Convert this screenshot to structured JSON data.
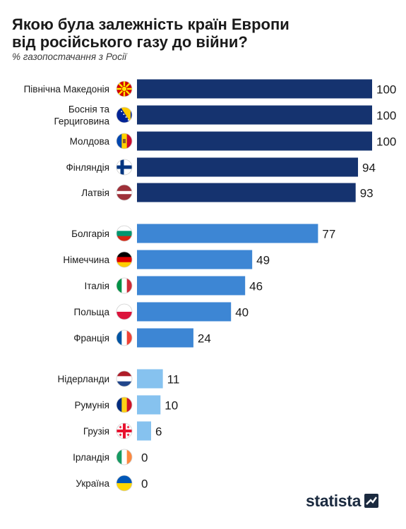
{
  "header": {
    "title": "Якою була залежність країн Европи\nвід російського газу до війни?",
    "subtitle": "% газопостачання з Росії"
  },
  "brand": {
    "name": "statista"
  },
  "colors": {
    "group1": "#15336f",
    "group2": "#3d86d4",
    "group3": "#86c2ef"
  },
  "chart_data": {
    "type": "bar",
    "orientation": "horizontal",
    "title": "Якою була залежність країн Европи від російського газу до війни?",
    "subtitle": "% газопостачання з Росії",
    "xlim": [
      0,
      100
    ],
    "grid": false,
    "legend": "none",
    "categories": [
      "Північна Македонія",
      "Боснія та\nГерциговина",
      "Молдова",
      "Фінляндія",
      "Латвія",
      "Болгарія",
      "Німеччина",
      "Італія",
      "Польща",
      "Франція",
      "Нідерланди",
      "Румунія",
      "Грузія",
      "Ірландія",
      "Україна"
    ],
    "values": [
      100,
      100,
      100,
      94,
      93,
      77,
      49,
      46,
      40,
      24,
      11,
      10,
      6,
      0,
      0
    ],
    "groups": [
      1,
      1,
      1,
      1,
      1,
      2,
      2,
      2,
      2,
      2,
      3,
      3,
      3,
      3,
      3
    ],
    "flag_icons": [
      "north-macedonia-flag-icon",
      "bosnia-flag-icon",
      "moldova-flag-icon",
      "finland-flag-icon",
      "latvia-flag-icon",
      "bulgaria-flag-icon",
      "germany-flag-icon",
      "italy-flag-icon",
      "poland-flag-icon",
      "france-flag-icon",
      "netherlands-flag-icon",
      "romania-flag-icon",
      "georgia-flag-icon",
      "ireland-flag-icon",
      "ukraine-flag-icon"
    ]
  }
}
